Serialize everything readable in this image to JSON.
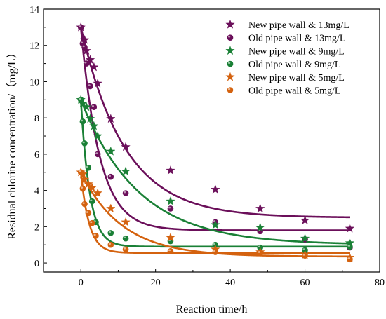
{
  "chart_data": {
    "type": "scatter",
    "xlabel": "Reaction time/h",
    "ylabel": "Residual chlorine concentration/（mg/L）",
    "xlim": [
      -10,
      80
    ],
    "ylim": [
      -0.5,
      14
    ],
    "xticks": [
      0,
      20,
      40,
      60,
      80
    ],
    "yticks": [
      0,
      2,
      4,
      6,
      8,
      10,
      12,
      14
    ],
    "xtick_labels": [
      "0",
      "20",
      "40",
      "60",
      "80"
    ],
    "ytick_labels": [
      "0",
      "2",
      "4",
      "6",
      "8",
      "10",
      "12",
      "14"
    ],
    "legend_position": "top-right",
    "grid": false,
    "series": [
      {
        "name": "New pipe wall & 13mg/L",
        "marker": "star",
        "color": "#6b0f5a",
        "points": [
          [
            0,
            13.0
          ],
          [
            1,
            12.3
          ],
          [
            1.5,
            11.7
          ],
          [
            2.5,
            11.2
          ],
          [
            3.5,
            10.8
          ],
          [
            4.5,
            9.9
          ],
          [
            8,
            7.95
          ],
          [
            12,
            6.4
          ],
          [
            24,
            5.1
          ],
          [
            36,
            4.05
          ],
          [
            48,
            3.0
          ],
          [
            60,
            2.35
          ],
          [
            72,
            1.9
          ]
        ],
        "fit": {
          "c": 2.5,
          "a": 10.5,
          "k": 0.085
        }
      },
      {
        "name": "Old pipe wall & 13mg/L",
        "marker": "circle",
        "color": "#6b0f5a",
        "points": [
          [
            0,
            13.0
          ],
          [
            0.5,
            12.1
          ],
          [
            1,
            11.9
          ],
          [
            1.5,
            11.0
          ],
          [
            2.5,
            9.75
          ],
          [
            3.5,
            8.6
          ],
          [
            4.5,
            6.0
          ],
          [
            8,
            4.75
          ],
          [
            12,
            3.85
          ],
          [
            24,
            3.0
          ],
          [
            36,
            2.25
          ],
          [
            48,
            1.75
          ],
          [
            60,
            1.3
          ],
          [
            72,
            0.85
          ]
        ],
        "fit": {
          "c": 1.8,
          "a": 11.2,
          "k": 0.2
        }
      },
      {
        "name": "New pipe wall & 9mg/L",
        "marker": "star",
        "color": "#1a8036",
        "points": [
          [
            0,
            9.0
          ],
          [
            0.5,
            8.8
          ],
          [
            1.5,
            8.6
          ],
          [
            2.5,
            7.95
          ],
          [
            3.5,
            7.55
          ],
          [
            4.5,
            7.0
          ],
          [
            8,
            6.15
          ],
          [
            12,
            5.05
          ],
          [
            24,
            3.4
          ],
          [
            36,
            2.1
          ],
          [
            48,
            1.95
          ],
          [
            60,
            1.35
          ],
          [
            72,
            1.1
          ]
        ],
        "fit": {
          "c": 1.0,
          "a": 8.0,
          "k": 0.065
        }
      },
      {
        "name": "Old pipe wall & 9mg/L",
        "marker": "circle",
        "color": "#1a8036",
        "points": [
          [
            0,
            9.0
          ],
          [
            0.5,
            7.8
          ],
          [
            1,
            6.6
          ],
          [
            2,
            5.25
          ],
          [
            3,
            3.4
          ],
          [
            4,
            2.25
          ],
          [
            8,
            1.65
          ],
          [
            12,
            1.35
          ],
          [
            24,
            1.2
          ],
          [
            36,
            1.0
          ],
          [
            48,
            0.85
          ],
          [
            60,
            0.7
          ],
          [
            72,
            0.9
          ]
        ],
        "fit": {
          "c": 0.9,
          "a": 8.1,
          "k": 0.42
        }
      },
      {
        "name": "New pipe wall & 5mg/L",
        "marker": "star",
        "color": "#d4620f",
        "points": [
          [
            0,
            5.0
          ],
          [
            0.5,
            4.9
          ],
          [
            1,
            4.6
          ],
          [
            2,
            4.35
          ],
          [
            3,
            4.15
          ],
          [
            4.5,
            3.85
          ],
          [
            8,
            3.0
          ],
          [
            12,
            2.25
          ],
          [
            24,
            1.4
          ],
          [
            36,
            0.75
          ],
          [
            48,
            0.6
          ],
          [
            60,
            0.45
          ],
          [
            72,
            0.3
          ]
        ],
        "fit": {
          "c": 0.35,
          "a": 4.65,
          "k": 0.09
        }
      },
      {
        "name": "Old pipe wall & 5mg/L",
        "marker": "circle",
        "color": "#d4620f",
        "points": [
          [
            0,
            5.0
          ],
          [
            0.5,
            4.1
          ],
          [
            1,
            3.25
          ],
          [
            2,
            2.75
          ],
          [
            3,
            2.2
          ],
          [
            4,
            1.5
          ],
          [
            8,
            1.0
          ],
          [
            12,
            0.75
          ],
          [
            24,
            0.65
          ],
          [
            36,
            0.6
          ],
          [
            48,
            0.55
          ],
          [
            60,
            0.4
          ],
          [
            72,
            0.2
          ]
        ],
        "fit": {
          "c": 0.55,
          "a": 4.45,
          "k": 0.45
        }
      }
    ]
  }
}
